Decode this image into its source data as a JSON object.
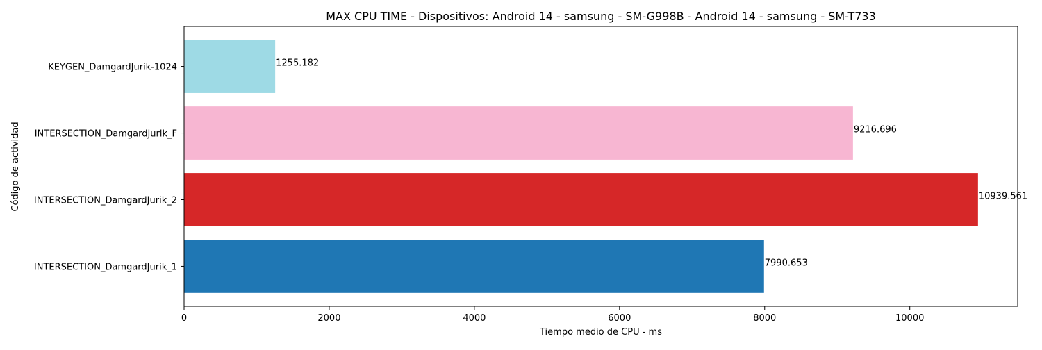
{
  "chart_data": {
    "type": "bar",
    "orientation": "horizontal",
    "title": "MAX CPU TIME - Dispositivos: Android 14 - samsung - SM-G998B - Android 14 - samsung - SM-T733",
    "xlabel": "Tiempo medio de CPU - ms",
    "ylabel": "Código de actividad",
    "categories": [
      "INTERSECTION_DamgardJurik_1",
      "INTERSECTION_DamgardJurik_2",
      "INTERSECTION_DamgardJurik_F",
      "KEYGEN_DamgardJurik-1024"
    ],
    "values": [
      7990.653,
      10939.561,
      9216.696,
      1255.182
    ],
    "value_labels": [
      "7990.653",
      "10939.561",
      "9216.696",
      "1255.182"
    ],
    "colors": [
      "#1f77b4",
      "#d62728",
      "#f7b6d2",
      "#9edae5"
    ],
    "xlim": [
      0,
      11486.5
    ],
    "xticks": [
      0,
      2000,
      4000,
      6000,
      8000,
      10000
    ],
    "xtick_labels": [
      "0",
      "2000",
      "4000",
      "6000",
      "8000",
      "10000"
    ],
    "grid": false,
    "legend": "none"
  }
}
